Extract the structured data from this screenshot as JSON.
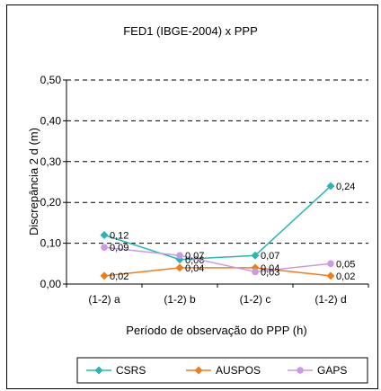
{
  "chart_data": {
    "type": "line",
    "title": "FED1 (IBGE-2004) x PPP",
    "xlabel": "Período de observação do PPP (h)",
    "ylabel": "Discrepância 2 d (m)",
    "categories": [
      "(1-2) a",
      "(1-2) b",
      "(1-2) c",
      "(1-2) d"
    ],
    "ylim": [
      0,
      0.5
    ],
    "yticks": [
      "0,00",
      "0,10",
      "0,20",
      "0,30",
      "0,40",
      "0,50"
    ],
    "grid": true,
    "legend_position": "bottom",
    "series": [
      {
        "name": "CSRS",
        "color": "#2ab5b5",
        "marker": "diamond",
        "values": [
          0.12,
          0.06,
          0.07,
          0.24
        ],
        "labels": [
          "0,12",
          "0,06",
          "0,07",
          "0,24"
        ]
      },
      {
        "name": "AUSPOS",
        "color": "#f07d1a",
        "marker": "diamond",
        "values": [
          0.02,
          0.04,
          0.04,
          0.02
        ],
        "labels": [
          "0,02",
          "0,04",
          "0,04",
          "0,02"
        ]
      },
      {
        "name": "GAPS",
        "color": "#c89ae8",
        "marker": "circle",
        "values": [
          0.09,
          0.07,
          0.03,
          0.05
        ],
        "labels": [
          "0,09",
          "0,07",
          "0,03",
          "0,05"
        ]
      }
    ]
  }
}
